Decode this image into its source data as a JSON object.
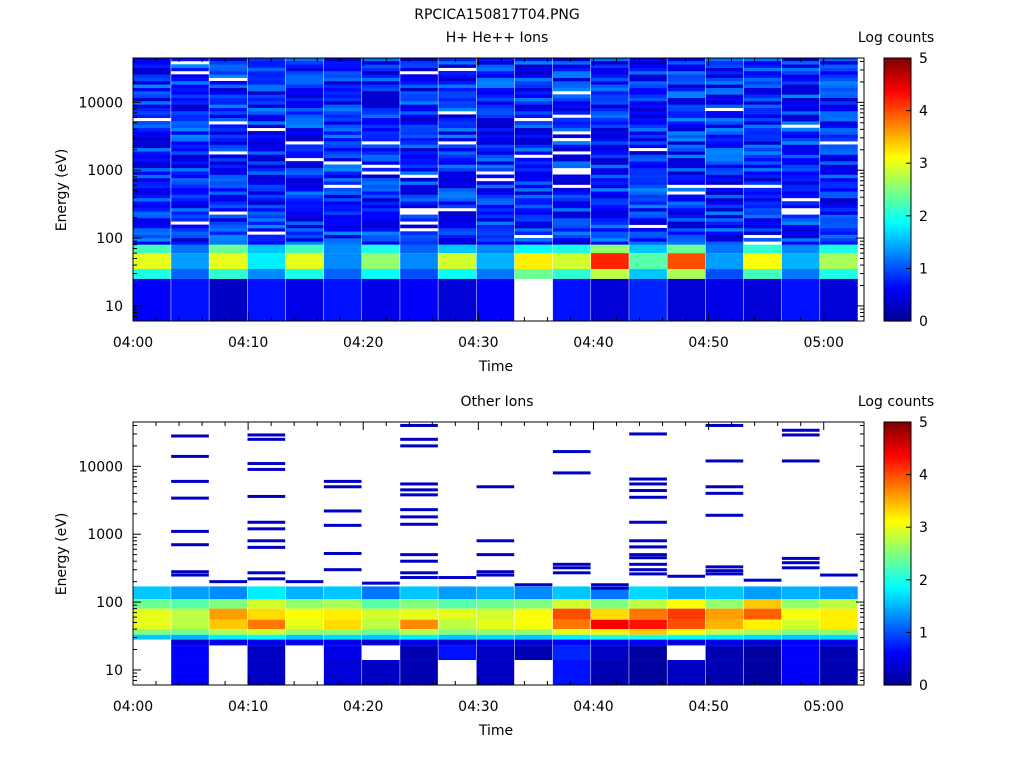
{
  "figure_title": "RPCICA150817T04.PNG",
  "colormap": [
    "#00008f",
    "#0000ff",
    "#0080ff",
    "#00ffff",
    "#80ff80",
    "#ffff00",
    "#ff8000",
    "#ff0000",
    "#800000"
  ],
  "chart_data": [
    {
      "type": "heatmap",
      "title": "H+ He++ Ions",
      "xlabel": "Time",
      "ylabel": "Energy (eV)",
      "yscale": "log",
      "ylim": [
        6,
        45000
      ],
      "x_ticks": [
        "04:00",
        "04:10",
        "04:20",
        "04:30",
        "04:40",
        "04:50",
        "05:00"
      ],
      "y_ticks": [
        "10",
        "100",
        "1000",
        "10000"
      ],
      "colorbar": {
        "label": "Log counts",
        "min": 0,
        "max": 5,
        "ticks": [
          "0",
          "1",
          "2",
          "3",
          "4",
          "5"
        ]
      },
      "x_start_min": 0,
      "x_end_min": 63,
      "n_columns": 19,
      "column_width_min": 3.2,
      "bands": [
        {
          "e_low": 60,
          "e_high": 80,
          "values": [
            2.2,
            1.2,
            2.4,
            1.6,
            2.2,
            1.3,
            2.0,
            1.1,
            1.6,
            1.3,
            1.9,
            2.0,
            2.6,
            1.6,
            2.4,
            1.2,
            2.1,
            1.3,
            2.0
          ]
        },
        {
          "e_low": 35,
          "e_high": 60,
          "values": [
            3.0,
            1.4,
            3.0,
            1.8,
            3.0,
            1.3,
            2.6,
            1.3,
            2.9,
            1.5,
            3.2,
            2.9,
            4.2,
            2.3,
            4.0,
            1.4,
            3.1,
            1.5,
            2.7
          ]
        },
        {
          "e_low": 25,
          "e_high": 35,
          "values": [
            2.0,
            1.1,
            2.1,
            1.3,
            2.0,
            1.1,
            1.9,
            1.0,
            1.9,
            1.2,
            2.4,
            2.1,
            2.8,
            1.6,
            2.7,
            1.0,
            2.2,
            1.2,
            2.0
          ]
        },
        {
          "e_low": 6,
          "e_high": 25,
          "values": [
            0.6,
            0.7,
            0.3,
            0.7,
            0.5,
            0.7,
            0.5,
            0.6,
            0.4,
            0.6,
            null,
            0.7,
            0.4,
            0.8,
            0.4,
            0.5,
            0.4,
            0.7,
            0.4
          ]
        }
      ],
      "background_range": [
        0.3,
        1.3
      ],
      "background_e_low": 80,
      "background_e_high": 45000,
      "blank_fraction": 0.05
    },
    {
      "type": "heatmap",
      "title": "Other Ions",
      "xlabel": "Time",
      "ylabel": "Energy (eV)",
      "yscale": "log",
      "ylim": [
        6,
        45000
      ],
      "x_ticks": [
        "04:00",
        "04:10",
        "04:20",
        "04:30",
        "04:40",
        "04:50",
        "05:00"
      ],
      "y_ticks": [
        "10",
        "100",
        "1000",
        "10000"
      ],
      "colorbar": {
        "label": "Log counts",
        "min": 0,
        "max": 5,
        "ticks": [
          "0",
          "1",
          "2",
          "3",
          "4",
          "5"
        ]
      },
      "x_start_min": 0,
      "x_end_min": 63,
      "n_columns": 19,
      "column_width_min": 3.2,
      "bands": [
        {
          "e_low": 110,
          "e_high": 170,
          "values": [
            1.6,
            1.4,
            1.3,
            1.8,
            1.5,
            1.6,
            1.2,
            1.6,
            1.4,
            1.5,
            1.3,
            1.6,
            1.2,
            1.7,
            1.5,
            1.6,
            1.4,
            1.5,
            1.4
          ]
        },
        {
          "e_low": 80,
          "e_high": 110,
          "values": [
            2.4,
            2.3,
            2.5,
            2.9,
            2.6,
            2.7,
            2.3,
            2.5,
            2.3,
            2.4,
            2.5,
            2.9,
            2.5,
            2.8,
            3.1,
            2.6,
            3.4,
            2.6,
            2.8
          ]
        },
        {
          "e_low": 55,
          "e_high": 80,
          "values": [
            3.0,
            2.8,
            3.6,
            3.3,
            3.1,
            3.2,
            2.9,
            3.0,
            3.0,
            2.9,
            3.1,
            4.0,
            3.3,
            3.8,
            4.1,
            3.6,
            3.9,
            3.1,
            3.2
          ]
        },
        {
          "e_low": 40,
          "e_high": 55,
          "values": [
            3.0,
            2.8,
            3.4,
            3.8,
            3.0,
            3.3,
            2.8,
            3.7,
            2.8,
            3.0,
            3.1,
            3.8,
            4.4,
            4.3,
            4.0,
            3.5,
            3.2,
            2.9,
            3.2
          ]
        },
        {
          "e_low": 33,
          "e_high": 40,
          "values": [
            2.5,
            2.4,
            2.7,
            2.9,
            2.6,
            2.6,
            2.4,
            2.8,
            2.5,
            2.6,
            2.6,
            3.0,
            3.2,
            3.4,
            3.1,
            2.8,
            2.7,
            2.5,
            2.6
          ]
        },
        {
          "e_low": 28,
          "e_high": 33,
          "values": [
            1.6,
            1.5,
            1.8,
            1.9,
            1.6,
            1.7,
            1.6,
            1.8,
            1.6,
            1.7,
            1.6,
            1.8,
            2.0,
            2.0,
            1.9,
            1.8,
            1.7,
            1.6,
            1.7
          ]
        },
        {
          "e_low": 23,
          "e_high": 28,
          "values": [
            null,
            0.4,
            0.5,
            0.5,
            0.6,
            0.5,
            0.4,
            0.5,
            0.4,
            0.5,
            0.4,
            0.6,
            0.5,
            0.6,
            0.5,
            0.5,
            0.4,
            0.6,
            0.5
          ]
        },
        {
          "e_low": 14,
          "e_high": 23,
          "values": [
            null,
            0.6,
            null,
            0.3,
            null,
            0.5,
            null,
            0.2,
            0.7,
            0.3,
            0.2,
            0.8,
            0.3,
            0.1,
            null,
            0.2,
            0.1,
            0.6,
            0.2
          ]
        },
        {
          "e_low": 6,
          "e_high": 14,
          "values": [
            null,
            0.6,
            null,
            0.3,
            null,
            0.4,
            0.3,
            0.2,
            null,
            0.3,
            null,
            0.7,
            0.2,
            0.1,
            0.3,
            0.2,
            0.1,
            0.6,
            0.2
          ]
        }
      ],
      "sparse_lines": [
        {
          "col": 1,
          "energies": [
            28000,
            14000,
            6000,
            3400,
            1100,
            700,
            280,
            250
          ]
        },
        {
          "col": 2,
          "energies": [
            200
          ]
        },
        {
          "col": 3,
          "energies": [
            29000,
            25000,
            11000,
            9000,
            3600,
            1500,
            1200,
            800,
            640,
            270,
            220
          ]
        },
        {
          "col": 4,
          "energies": [
            200
          ]
        },
        {
          "col": 5,
          "energies": [
            6000,
            5000,
            2200,
            1350,
            520,
            300
          ]
        },
        {
          "col": 6,
          "energies": [
            190
          ]
        },
        {
          "col": 7,
          "energies": [
            40000,
            25000,
            20000,
            5500,
            4500,
            3800,
            2300,
            1800,
            1400,
            500,
            400,
            270,
            230
          ]
        },
        {
          "col": 8,
          "energies": [
            230
          ]
        },
        {
          "col": 9,
          "energies": [
            5000,
            800,
            500,
            280,
            250
          ]
        },
        {
          "col": 10,
          "energies": [
            180
          ]
        },
        {
          "col": 11,
          "energies": [
            16500,
            8000,
            360,
            320,
            270
          ]
        },
        {
          "col": 12,
          "energies": [
            180,
            160
          ]
        },
        {
          "col": 13,
          "energies": [
            30000,
            6500,
            5500,
            4400,
            3500,
            1500,
            800,
            650,
            500,
            450,
            360,
            300,
            260
          ]
        },
        {
          "col": 14,
          "energies": [
            240
          ]
        },
        {
          "col": 15,
          "energies": [
            40000,
            12000,
            5000,
            4000,
            1900,
            330,
            290,
            260
          ]
        },
        {
          "col": 16,
          "energies": [
            210
          ]
        },
        {
          "col": 17,
          "energies": [
            34000,
            29000,
            12000,
            440,
            380,
            320
          ]
        },
        {
          "col": 18,
          "energies": [
            250
          ]
        }
      ]
    }
  ]
}
